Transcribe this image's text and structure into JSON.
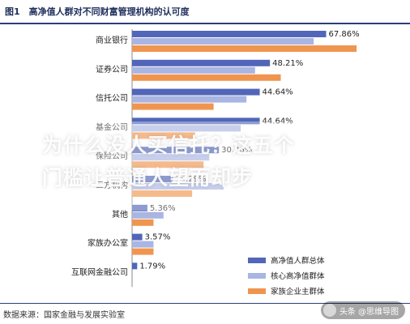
{
  "figure": {
    "title": "图1　高净值人群对不同财富管理机构的认可度",
    "source": "数据来源：国家金融与发展实验室"
  },
  "watermark": {
    "line1": "为什么没人买信托？这五个",
    "line2": "门槛让普通人望而却步"
  },
  "credit": {
    "text": "头条 @思维导图"
  },
  "chart_data": {
    "type": "bar",
    "orientation": "horizontal",
    "title": "高净值人群对不同财富管理机构的认可度",
    "categories": [
      "商业银行",
      "证券公司",
      "信托公司",
      "基金公司",
      "保险公司",
      "三方机构",
      "其他",
      "家族办公室",
      "互联网金融公司"
    ],
    "series": [
      {
        "name": "高净值人群总体",
        "color": "#5166b8",
        "values": [
          67.86,
          48.21,
          44.64,
          44.64,
          30.36,
          14.29,
          5.36,
          3.57,
          1.79
        ]
      },
      {
        "name": "核心高净值群体",
        "color": "#a9b5e2",
        "values": [
          63.5,
          43.0,
          40.0,
          38.0,
          27.0,
          32.0,
          11.0,
          7.5,
          0
        ]
      },
      {
        "name": "家族企业主群体",
        "color": "#f0954f",
        "values": [
          78.5,
          52.0,
          28.5,
          22.0,
          25.0,
          21.0,
          7.5,
          7.5,
          0
        ]
      }
    ],
    "value_labels": [
      "67.86%",
      "48.21%",
      "44.64%",
      "44.64%",
      "30.36%",
      "14.29%",
      "5.36%",
      "3.57%",
      "1.79%"
    ],
    "xlim": [
      0,
      85
    ],
    "legend_position": "bottom-right",
    "grid": false
  }
}
